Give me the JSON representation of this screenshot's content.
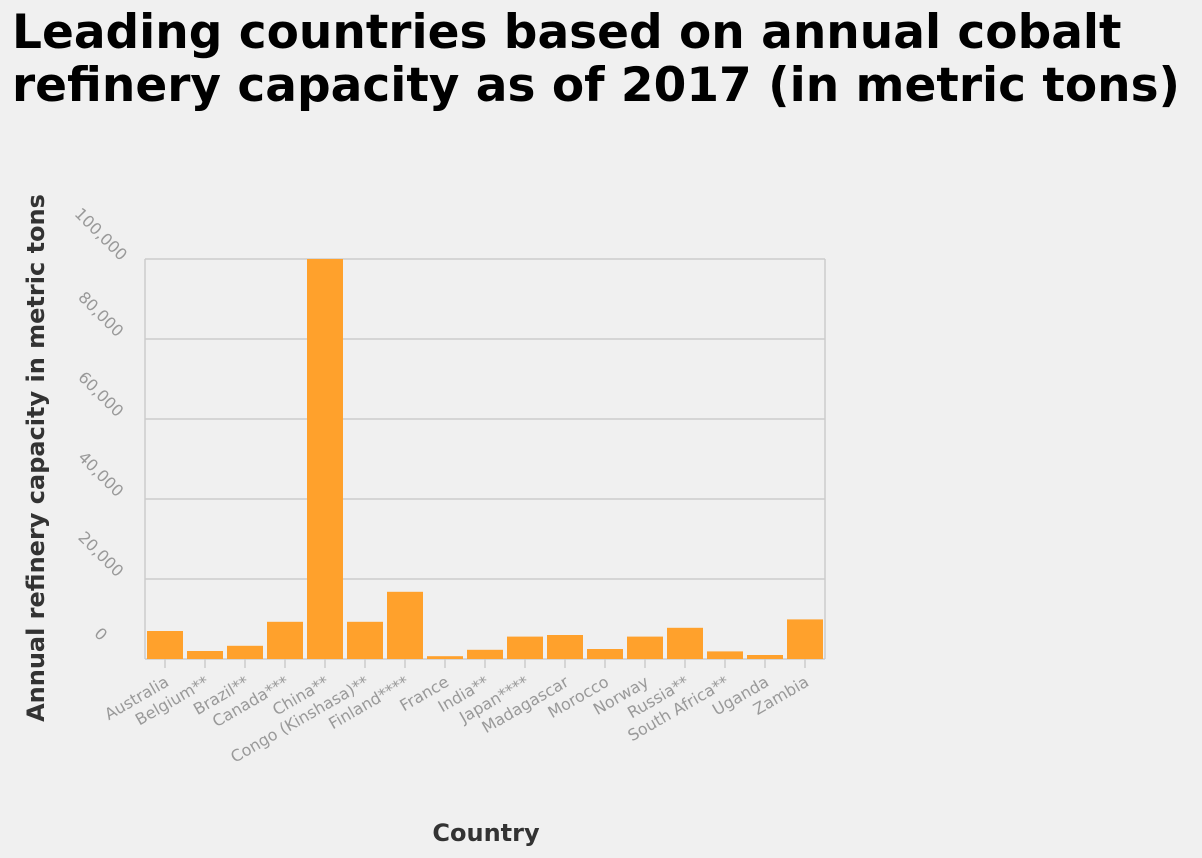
{
  "title": "Leading countries based on annual cobalt refinery capacity as of 2017 (in metric tons)",
  "colors": {
    "bar": "#ffa12c",
    "grid": "#cccccc",
    "tick_label": "#999999",
    "axis_title": "#333333",
    "background": "#f0f0f0"
  },
  "chart_data": {
    "type": "bar",
    "title": "Leading countries based on annual cobalt refinery capacity as of 2017 (in metric tons)",
    "xlabel": "Country",
    "ylabel": "Annual refinery capacity in metric tons",
    "ylim": [
      0,
      100000
    ],
    "yticks": [
      0,
      20000,
      40000,
      60000,
      80000,
      100000
    ],
    "ytick_labels": [
      "0",
      "20,000",
      "40,000",
      "60,000",
      "80,000",
      "100,000"
    ],
    "grid": true,
    "categories": [
      "Australia",
      "Belgium**",
      "Brazil**",
      "Canada***",
      "China**",
      "Congo (Kinshasa)**",
      "Finland****",
      "France",
      "India**",
      "Japan****",
      "Madagascar",
      "Morocco",
      "Norway",
      "Russia**",
      "South Africa**",
      "Uganda",
      "Zambia"
    ],
    "values": [
      7000,
      2000,
      3300,
      9300,
      100000,
      9300,
      16800,
      700,
      2300,
      5600,
      6000,
      2500,
      5600,
      7800,
      1900,
      1000,
      9900
    ]
  }
}
